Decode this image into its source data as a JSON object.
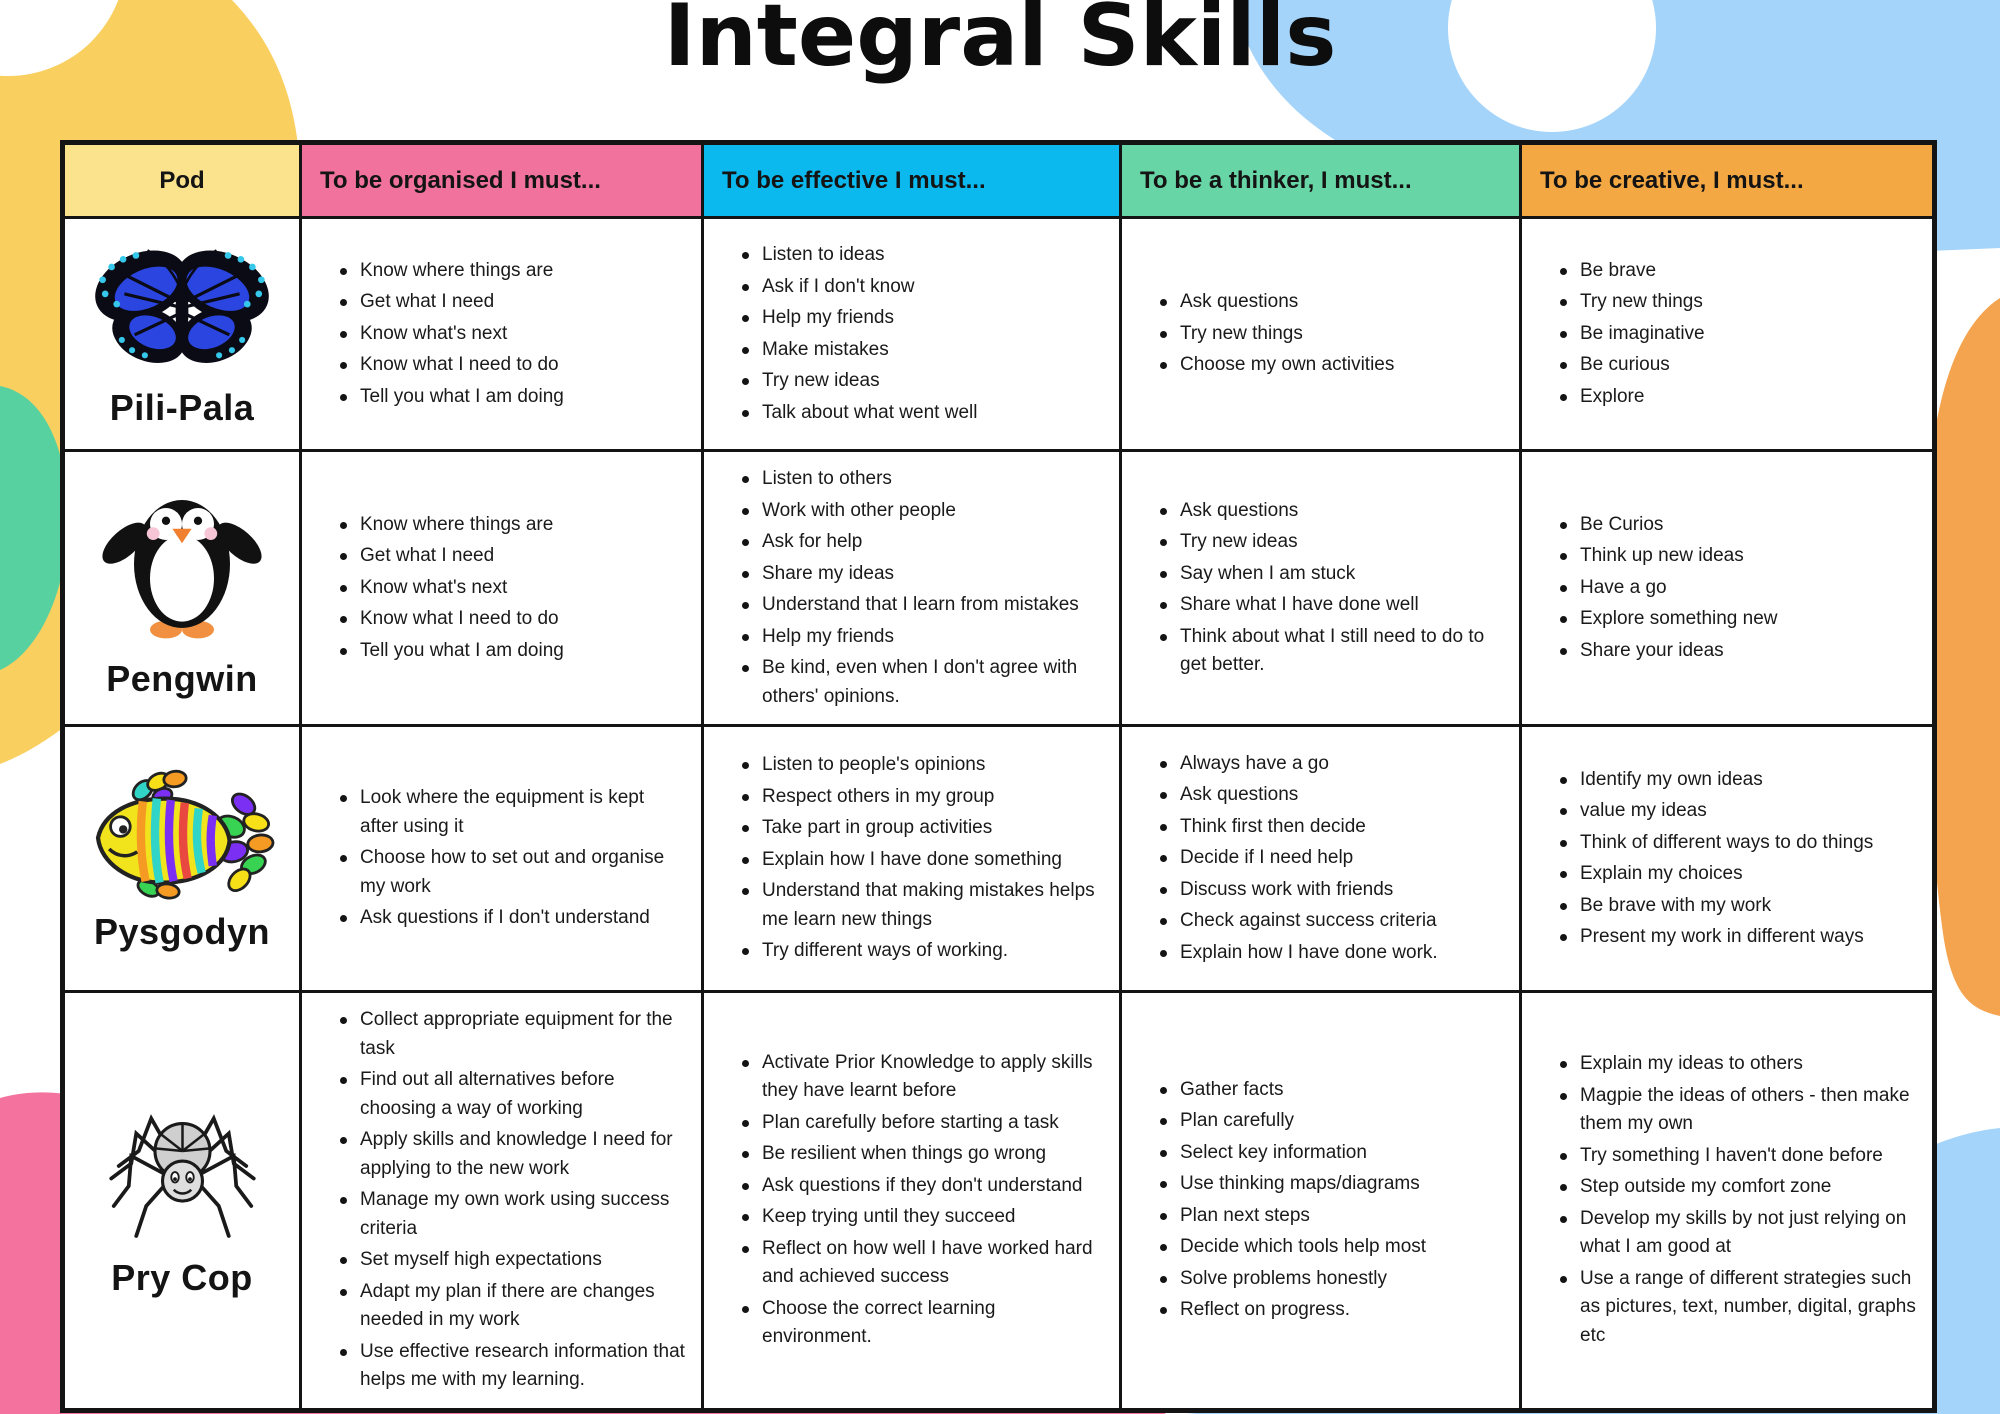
{
  "page": {
    "title": "Integral Skills"
  },
  "colors": {
    "header_pod": "#FBE28C",
    "header_organised": "#F2729E",
    "header_effective": "#0CB9EF",
    "header_thinker": "#67D5A5",
    "header_creative": "#F4A843",
    "blob_yellow": "#F9CF5F",
    "blob_green": "#58D1A1",
    "blob_pink": "#F4729E",
    "blob_blue": "#A5D4FA",
    "blob_orange": "#F4A34F",
    "border": "#141414"
  },
  "table": {
    "columns": [
      "organised",
      "effective",
      "thinker",
      "creative"
    ],
    "headers": [
      {
        "key": "pod",
        "label": "Pod",
        "color": "#FBE28C"
      },
      {
        "key": "organised",
        "label": "To be organised I must...",
        "color": "#F2729E"
      },
      {
        "key": "effective",
        "label": "To be effective I must...",
        "color": "#0CB9EF"
      },
      {
        "key": "thinker",
        "label": "To be a thinker, I must...",
        "color": "#67D5A5"
      },
      {
        "key": "creative",
        "label": "To be creative, I must...",
        "color": "#F4A843"
      }
    ],
    "rows": [
      {
        "pod": "Pili-Pala",
        "icon": "butterfly-icon",
        "organised": [
          "Know where things are",
          "Get what I need",
          "Know what's next",
          "Know what I need to do",
          "Tell you what I am doing"
        ],
        "effective": [
          "Listen to ideas",
          "Ask if I don't know",
          "Help my friends",
          "Make mistakes",
          "Try new ideas",
          "Talk about what went well"
        ],
        "thinker": [
          "Ask questions",
          "Try new things",
          "Choose my own activities"
        ],
        "creative": [
          "Be brave",
          "Try new things",
          "Be imaginative",
          "Be curious",
          "Explore"
        ]
      },
      {
        "pod": "Pengwin",
        "icon": "penguin-icon",
        "organised": [
          "Know where things are",
          "Get what I need",
          "Know what's next",
          "Know what I need to do",
          "Tell you what I am doing"
        ],
        "effective": [
          "Listen to others",
          "Work with other people",
          "Ask for help",
          "Share my ideas",
          "Understand that I learn from mistakes",
          "Help my friends",
          "Be kind, even when I don't agree with others' opinions."
        ],
        "thinker": [
          "Ask questions",
          "Try new ideas",
          "Say when I am stuck",
          "Share what I have done well",
          "Think about what I still need to do to get better."
        ],
        "creative": [
          "Be Curios",
          "Think up new ideas",
          "Have a go",
          "Explore something new",
          "Share your ideas"
        ]
      },
      {
        "pod": "Pysgodyn",
        "icon": "fish-icon",
        "organised": [
          "Look where the equipment is kept after using it",
          "Choose how to set out and organise my work",
          "Ask questions if I don't understand"
        ],
        "effective": [
          "Listen to people's opinions",
          "Respect others in my group",
          "Take part in group activities",
          "Explain how I have done something",
          "Understand that making mistakes helps me learn new things",
          "Try different ways of working."
        ],
        "thinker": [
          "Always have a go",
          "Ask questions",
          "Think first then decide",
          "Decide if I need help",
          "Discuss work with friends",
          "Check against success criteria",
          "Explain how I have done work."
        ],
        "creative": [
          "Identify my own ideas",
          "value my ideas",
          "Think of different ways to do things",
          "Explain my choices",
          "Be brave with my work",
          "Present my work in different ways"
        ]
      },
      {
        "pod": "Pry Cop",
        "icon": "spider-icon",
        "organised": [
          "Collect appropriate equipment for the task",
          "Find out all alternatives before choosing a way of working",
          "Apply skills and knowledge I need for applying to the new work",
          "Manage my own work using success criteria",
          "Set myself high expectations",
          "Adapt my plan if there are changes needed in my work",
          "Use effective research information that helps me with my learning."
        ],
        "effective": [
          "Activate Prior Knowledge to apply skills they have learnt before",
          "Plan carefully before starting a task",
          "Be resilient when things go wrong",
          "Ask questions if they don't understand",
          "Keep trying until they succeed",
          "Reflect on how well I have worked hard and achieved success",
          "Choose the correct learning environment."
        ],
        "thinker": [
          "Gather facts",
          "Plan carefully",
          "Select key information",
          "Use thinking maps/diagrams",
          "Plan next steps",
          "Decide which tools help most",
          "Solve problems honestly",
          "Reflect on progress."
        ],
        "creative": [
          "Explain my ideas to others",
          "Magpie the ideas of others - then make them my own",
          "Try something I haven't done before",
          "Step outside my comfort zone",
          "Develop my skills by not just relying on what I am good at",
          "Use a range of different strategies such as pictures, text, number, digital, graphs etc"
        ]
      }
    ]
  }
}
